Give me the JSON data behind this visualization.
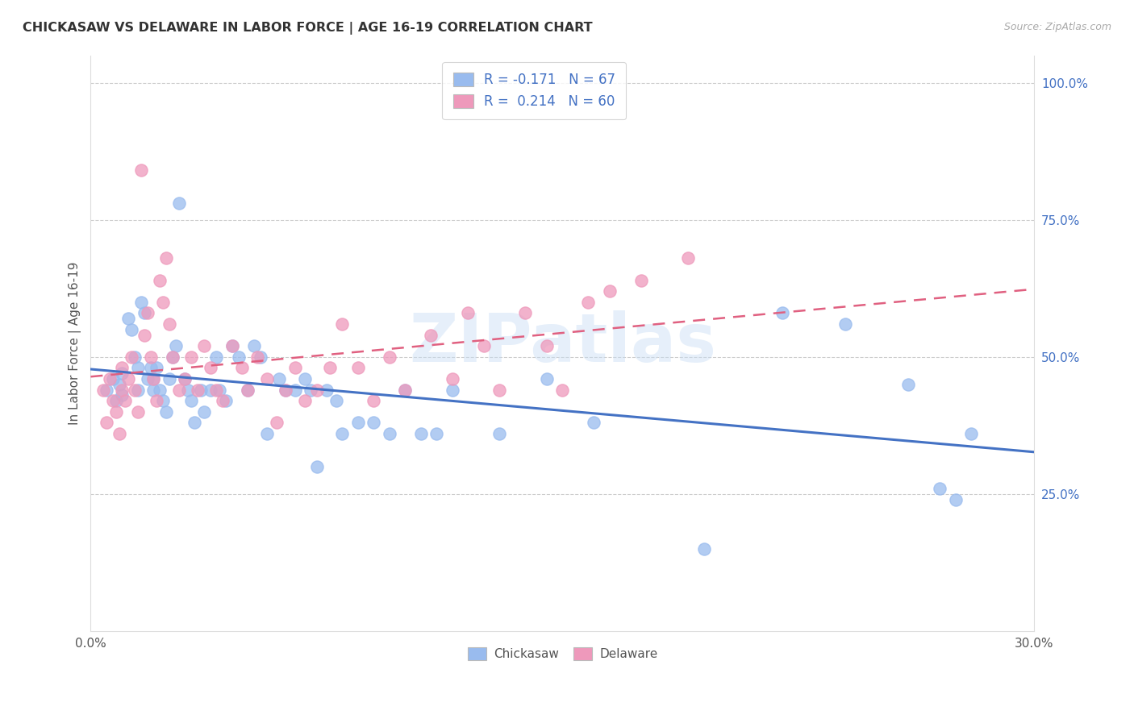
{
  "title": "CHICKASAW VS DELAWARE IN LABOR FORCE | AGE 16-19 CORRELATION CHART",
  "source": "Source: ZipAtlas.com",
  "ylabel": "In Labor Force | Age 16-19",
  "yticks_labels": [
    "25.0%",
    "50.0%",
    "75.0%",
    "100.0%"
  ],
  "ytick_vals": [
    0.25,
    0.5,
    0.75,
    1.0
  ],
  "xmin": 0.0,
  "xmax": 0.3,
  "ymin": 0.0,
  "ymax": 1.05,
  "legend_r_line1": "R = -0.171   N = 67",
  "legend_r_line2": "R =  0.214   N = 60",
  "chickasaw_color": "#99bbee",
  "delaware_color": "#ee99bb",
  "trendline_chickasaw_color": "#4472c4",
  "trendline_delaware_color": "#e06080",
  "watermark": "ZIPatlas",
  "chickasaw_x": [
    0.005,
    0.007,
    0.008,
    0.009,
    0.01,
    0.01,
    0.012,
    0.013,
    0.014,
    0.015,
    0.015,
    0.016,
    0.017,
    0.018,
    0.019,
    0.02,
    0.02,
    0.021,
    0.022,
    0.023,
    0.024,
    0.025,
    0.026,
    0.027,
    0.028,
    0.03,
    0.031,
    0.032,
    0.033,
    0.035,
    0.036,
    0.038,
    0.04,
    0.041,
    0.043,
    0.045,
    0.047,
    0.05,
    0.052,
    0.054,
    0.056,
    0.06,
    0.062,
    0.065,
    0.068,
    0.07,
    0.072,
    0.075,
    0.078,
    0.08,
    0.085,
    0.09,
    0.095,
    0.1,
    0.105,
    0.11,
    0.115,
    0.13,
    0.145,
    0.16,
    0.195,
    0.22,
    0.24,
    0.26,
    0.27,
    0.275,
    0.28
  ],
  "chickasaw_y": [
    0.44,
    0.46,
    0.42,
    0.45,
    0.47,
    0.43,
    0.57,
    0.55,
    0.5,
    0.48,
    0.44,
    0.6,
    0.58,
    0.46,
    0.48,
    0.44,
    0.46,
    0.48,
    0.44,
    0.42,
    0.4,
    0.46,
    0.5,
    0.52,
    0.78,
    0.46,
    0.44,
    0.42,
    0.38,
    0.44,
    0.4,
    0.44,
    0.5,
    0.44,
    0.42,
    0.52,
    0.5,
    0.44,
    0.52,
    0.5,
    0.36,
    0.46,
    0.44,
    0.44,
    0.46,
    0.44,
    0.3,
    0.44,
    0.42,
    0.36,
    0.38,
    0.38,
    0.36,
    0.44,
    0.36,
    0.36,
    0.44,
    0.36,
    0.46,
    0.38,
    0.15,
    0.58,
    0.56,
    0.45,
    0.26,
    0.24,
    0.36
  ],
  "delaware_x": [
    0.004,
    0.005,
    0.006,
    0.007,
    0.008,
    0.009,
    0.01,
    0.01,
    0.011,
    0.012,
    0.013,
    0.014,
    0.015,
    0.016,
    0.017,
    0.018,
    0.019,
    0.02,
    0.021,
    0.022,
    0.023,
    0.024,
    0.025,
    0.026,
    0.028,
    0.03,
    0.032,
    0.034,
    0.036,
    0.038,
    0.04,
    0.042,
    0.045,
    0.048,
    0.05,
    0.053,
    0.056,
    0.059,
    0.062,
    0.065,
    0.068,
    0.072,
    0.076,
    0.08,
    0.085,
    0.09,
    0.095,
    0.1,
    0.108,
    0.115,
    0.12,
    0.125,
    0.13,
    0.138,
    0.145,
    0.15,
    0.158,
    0.165,
    0.175,
    0.19
  ],
  "delaware_y": [
    0.44,
    0.38,
    0.46,
    0.42,
    0.4,
    0.36,
    0.44,
    0.48,
    0.42,
    0.46,
    0.5,
    0.44,
    0.4,
    0.84,
    0.54,
    0.58,
    0.5,
    0.46,
    0.42,
    0.64,
    0.6,
    0.68,
    0.56,
    0.5,
    0.44,
    0.46,
    0.5,
    0.44,
    0.52,
    0.48,
    0.44,
    0.42,
    0.52,
    0.48,
    0.44,
    0.5,
    0.46,
    0.38,
    0.44,
    0.48,
    0.42,
    0.44,
    0.48,
    0.56,
    0.48,
    0.42,
    0.5,
    0.44,
    0.54,
    0.46,
    0.58,
    0.52,
    0.44,
    0.58,
    0.52,
    0.44,
    0.6,
    0.62,
    0.64,
    0.68
  ]
}
